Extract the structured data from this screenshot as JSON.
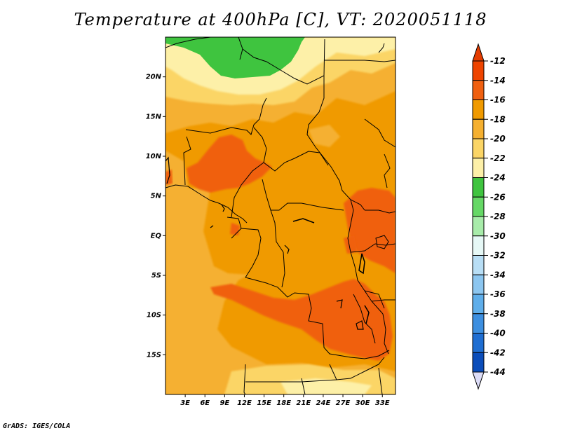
{
  "title": "Temperature at 400hPa [C], VT: 2020051118",
  "footer": "GrADS: IGES/COLA",
  "chart_data": {
    "type": "heatmap",
    "title": "Temperature at 400hPa [C], VT: 2020051118",
    "variable": "Temperature",
    "level": "400hPa",
    "units": "C",
    "valid_time": "2020051118",
    "x_range": [
      0,
      35
    ],
    "y_range": [
      -20,
      25
    ],
    "x_ticks": [
      {
        "value": 3,
        "label": "3E"
      },
      {
        "value": 6,
        "label": "6E"
      },
      {
        "value": 9,
        "label": "9E"
      },
      {
        "value": 12,
        "label": "12E"
      },
      {
        "value": 15,
        "label": "15E"
      },
      {
        "value": 18,
        "label": "18E"
      },
      {
        "value": 21,
        "label": "21E"
      },
      {
        "value": 24,
        "label": "24E"
      },
      {
        "value": 27,
        "label": "27E"
      },
      {
        "value": 30,
        "label": "30E"
      },
      {
        "value": 33,
        "label": "33E"
      }
    ],
    "y_ticks": [
      {
        "value": 20,
        "label": "20N"
      },
      {
        "value": 15,
        "label": "15N"
      },
      {
        "value": 10,
        "label": "10N"
      },
      {
        "value": 5,
        "label": "5N"
      },
      {
        "value": 0,
        "label": "EQ"
      },
      {
        "value": -5,
        "label": "5S"
      },
      {
        "value": -10,
        "label": "10S"
      },
      {
        "value": -15,
        "label": "15S"
      }
    ],
    "colorbar": {
      "labels": [
        "-12",
        "-14",
        "-16",
        "-18",
        "-20",
        "-22",
        "-24",
        "-26",
        "-28",
        "-30",
        "-32",
        "-34",
        "-36",
        "-38",
        "-40",
        "-42",
        "-44"
      ],
      "colors": [
        "#ee4400",
        "#f06010",
        "#f09a00",
        "#f5b030",
        "#fbd566",
        "#fdf0a8",
        "#3fc43f",
        "#66d866",
        "#a8ecaa",
        "#e6f8f6",
        "#b8def5",
        "#8cc6f0",
        "#5faeea",
        "#3d8fe0",
        "#1f6ed2",
        "#0b4dba",
        "#0a1c84"
      ],
      "over_color": "#e43c00",
      "under_color": "#dcdcf7"
    },
    "regions": [
      {
        "label": "green cold pool",
        "value": -24,
        "color": "#3fc43f"
      },
      {
        "label": "pale northern band",
        "value": -22,
        "color": "#fdf0a8"
      },
      {
        "label": "yellow band",
        "value": -20,
        "color": "#fbd566"
      },
      {
        "label": "light orange",
        "value": -18,
        "color": "#f5b030"
      },
      {
        "label": "background orange",
        "value": -16,
        "color": "#f09a00"
      },
      {
        "label": "dark orange warm areas",
        "value": -14,
        "color": "#f06010"
      }
    ]
  }
}
